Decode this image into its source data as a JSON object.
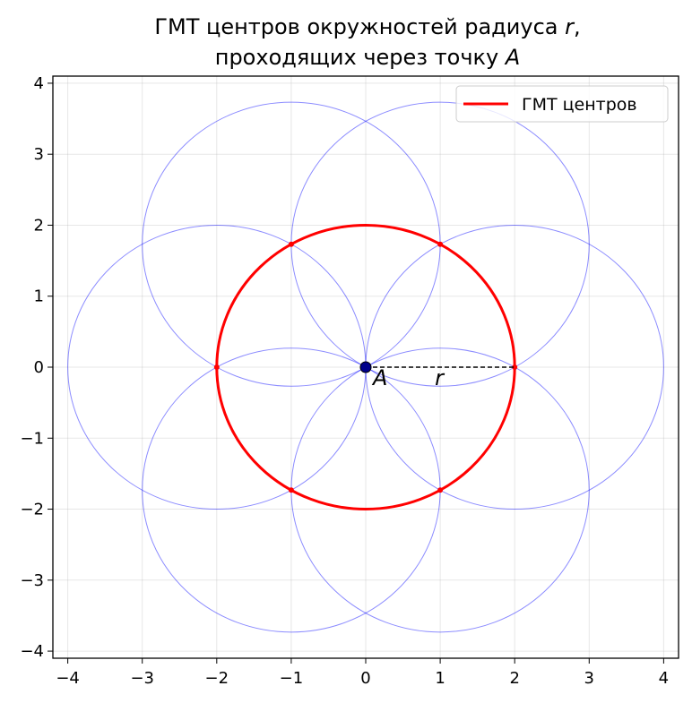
{
  "chart_data": {
    "type": "line",
    "title_line1_text": "ГМТ центров окружностей радиуса ",
    "title_line1_var": "r",
    "title_line1_end": ",",
    "title_line2_text": "проходящих через точку ",
    "title_line2_var": "A",
    "xlim": [
      -4.2,
      4.2
    ],
    "ylim": [
      -4.1,
      4.1
    ],
    "xticks": [
      -4,
      -3,
      -2,
      -1,
      0,
      1,
      2,
      3,
      4
    ],
    "yticks": [
      -4,
      -3,
      -2,
      -1,
      0,
      1,
      2,
      3,
      4
    ],
    "tick_labels": [
      "−4",
      "−3",
      "−2",
      "−1",
      "0",
      "1",
      "2",
      "3",
      "4"
    ],
    "grid": true,
    "legend": {
      "position": "top-right",
      "entries": [
        "ГМТ центров"
      ]
    },
    "locus": {
      "center": [
        0,
        0
      ],
      "radius": 2,
      "color": "#ff0000"
    },
    "circle_radius": 2,
    "circle_centers": [
      [
        2,
        0
      ],
      [
        1,
        1.732
      ],
      [
        -1,
        1.732
      ],
      [
        -2,
        0
      ],
      [
        -1,
        -1.732
      ],
      [
        1,
        -1.732
      ]
    ],
    "circle_color": "#0000ff",
    "point_A": [
      0,
      0
    ],
    "point_A_label": "A",
    "segment": {
      "from": [
        0,
        0
      ],
      "to": [
        2,
        0
      ]
    },
    "segment_label": "r",
    "colors": {
      "locus": "#ff0000",
      "circles": "#0000ff",
      "point": "#00008b",
      "axes": "#000000"
    }
  }
}
